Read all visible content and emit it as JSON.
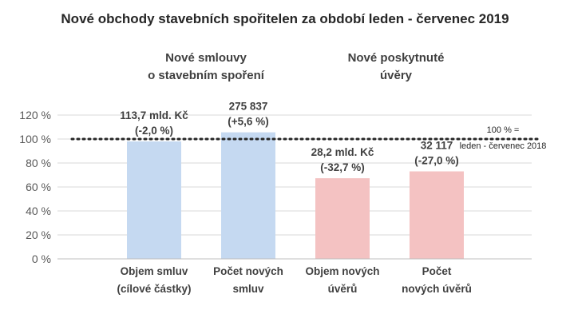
{
  "title": "Nové obchody stavebních spořitelen za období leden - červenec 2019",
  "groups": [
    {
      "line1": "Nové smlouvy",
      "line2": "o stavebním spoření"
    },
    {
      "line1": "Nové poskytnuté",
      "line2": "úvěry"
    }
  ],
  "reference": {
    "line1": "100 % =",
    "line2": "leden - červenec 2018",
    "value": 100
  },
  "colors": {
    "group1": "#c5d9f1",
    "group2": "#f4c2c2",
    "grid": "#d9d9d9",
    "refline": "#262626"
  },
  "chart_data": {
    "type": "bar",
    "title": "Nové obchody stavebních spořitelen za období leden - červenec 2019",
    "categories": [
      [
        "Objem smluv",
        "(cílové částky)"
      ],
      [
        "Počet  nových",
        "smluv"
      ],
      [
        "Objem nových",
        "úvěrů"
      ],
      [
        "Počet",
        "nových úvěrů"
      ]
    ],
    "values": [
      98.0,
      105.6,
      67.3,
      73.0
    ],
    "data_labels": [
      [
        "113,7 mld. Kč",
        "(-2,0 %)"
      ],
      [
        "275 837",
        "(+5,6 %)"
      ],
      [
        "28,2 mld. Kč",
        "(-32,7 %)"
      ],
      [
        "32 117",
        "(-27,0 %)"
      ]
    ],
    "yticks": [
      "0 %",
      "20 %",
      "40 %",
      "60 %",
      "80 %",
      "100 %",
      "120 %"
    ],
    "ylim": [
      0,
      120
    ],
    "grid": true
  }
}
